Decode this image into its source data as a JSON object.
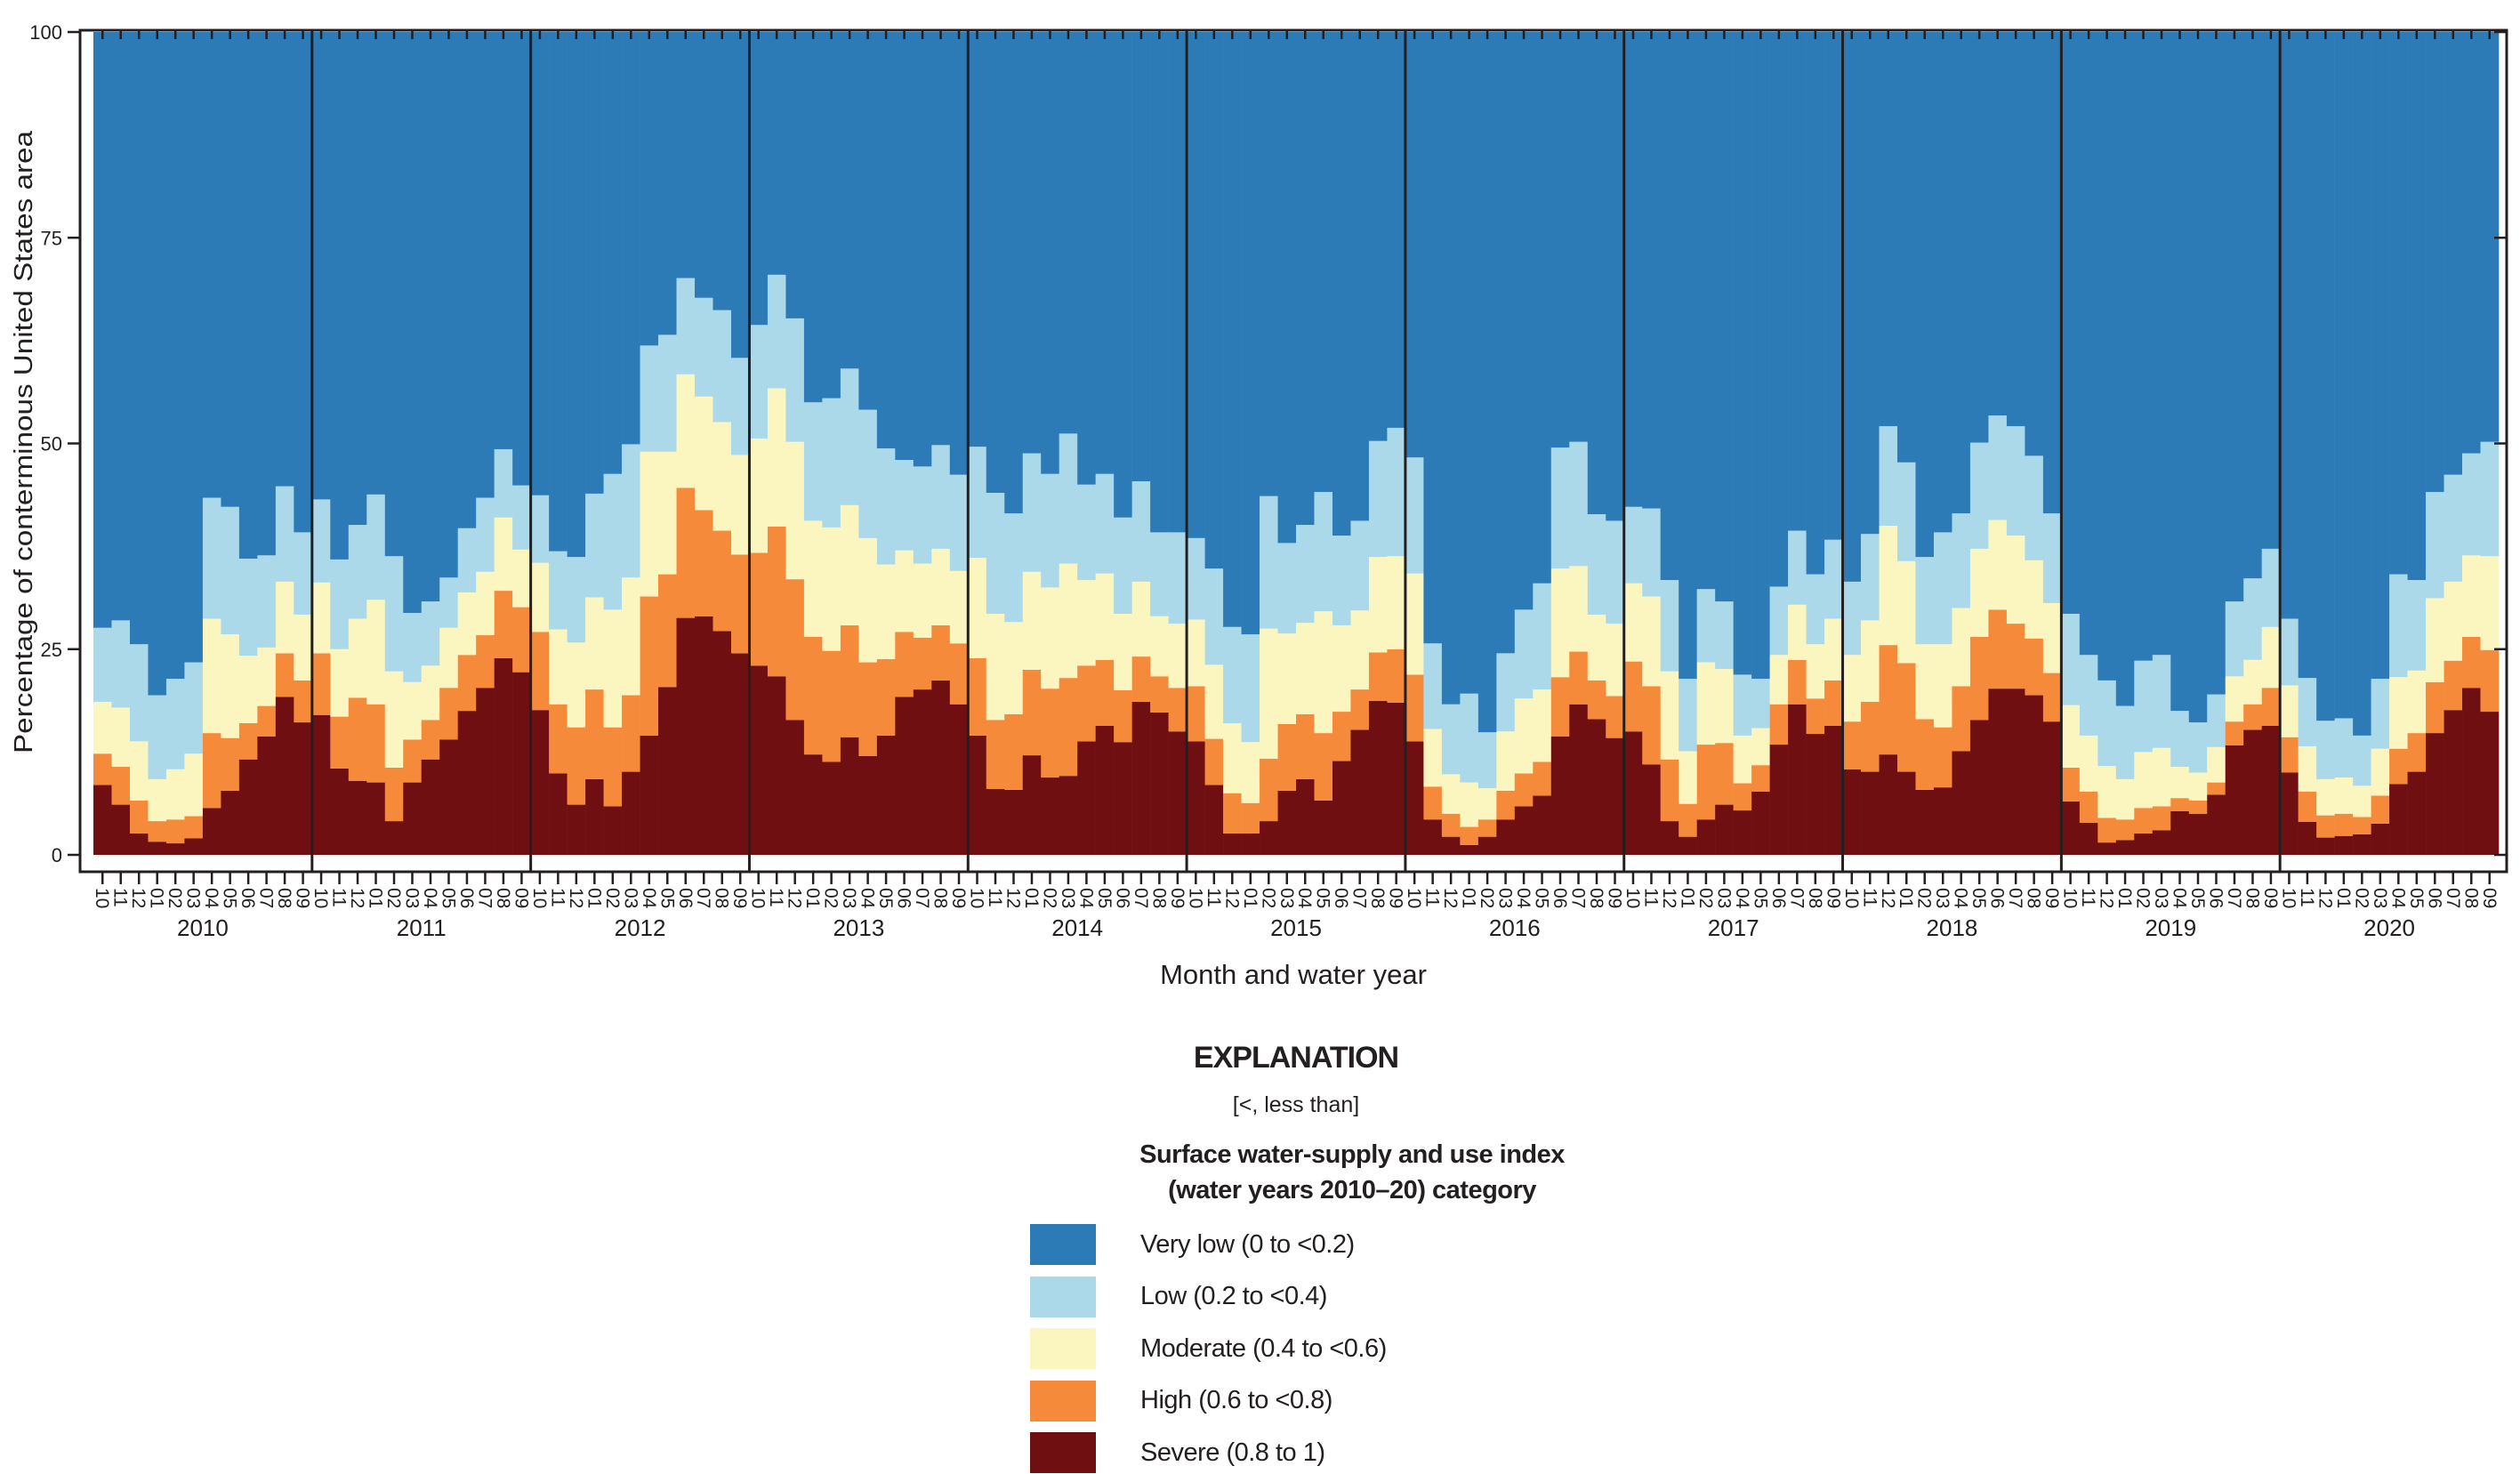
{
  "chart_data": {
    "type": "bar",
    "stacked": true,
    "ylabel": "Percentage of conterminous United States area",
    "xlabel": "Month and water year",
    "ylim": [
      0,
      100
    ],
    "yticks": [
      "0",
      "25",
      "50",
      "75",
      "100"
    ],
    "grid": false,
    "months": [
      "10",
      "11",
      "12",
      "01",
      "02",
      "03",
      "04",
      "05",
      "06",
      "07",
      "08",
      "09"
    ],
    "value_order": [
      "severe",
      "high",
      "moderate",
      "low",
      "very_low"
    ],
    "categories": [
      {
        "key": "very_low",
        "name": "Very low (0 to <0.2)",
        "color": "#2c7bb6"
      },
      {
        "key": "low",
        "name": "Low (0.2 to <0.4)",
        "color": "#abd9e9"
      },
      {
        "key": "moderate",
        "name": "Moderate (0.4 to <0.6)",
        "color": "#fbf6c0"
      },
      {
        "key": "high",
        "name": "High (0.6 to <0.8)",
        "color": "#f58a3a"
      },
      {
        "key": "severe",
        "name": "Severe (0.8 to 1)",
        "color": "#700f11"
      }
    ],
    "years": [
      {
        "year": "2010",
        "values": [
          [
            8.5,
            3.8,
            6.3,
            9.0,
            72.4
          ],
          [
            6.1,
            4.6,
            7.2,
            10.6,
            71.5
          ],
          [
            2.6,
            4.0,
            7.2,
            11.8,
            74.4
          ],
          [
            1.6,
            2.5,
            5.1,
            10.2,
            80.6
          ],
          [
            1.4,
            2.9,
            6.1,
            11.0,
            78.6
          ],
          [
            2.0,
            2.7,
            7.6,
            11.1,
            76.6
          ],
          [
            5.7,
            9.1,
            13.9,
            14.7,
            56.6
          ],
          [
            7.8,
            6.4,
            12.6,
            15.5,
            57.7
          ],
          [
            11.6,
            4.4,
            8.2,
            11.8,
            64.0
          ],
          [
            14.4,
            3.7,
            7.1,
            11.2,
            63.6
          ],
          [
            19.2,
            5.3,
            8.7,
            11.6,
            55.2
          ],
          [
            16.1,
            5.1,
            8.0,
            10.0,
            60.8
          ]
        ]
      },
      {
        "year": "2011",
        "values": [
          [
            17.0,
            7.5,
            8.6,
            10.1,
            56.8
          ],
          [
            10.5,
            6.3,
            8.2,
            10.9,
            64.1
          ],
          [
            9.0,
            10.1,
            9.6,
            11.4,
            59.9
          ],
          [
            8.8,
            9.5,
            12.7,
            12.8,
            56.2
          ],
          [
            4.1,
            6.5,
            11.7,
            14.0,
            63.7
          ],
          [
            8.8,
            5.2,
            7.0,
            8.4,
            70.6
          ],
          [
            11.6,
            4.8,
            6.6,
            7.8,
            69.2
          ],
          [
            14.0,
            6.3,
            7.3,
            6.1,
            66.3
          ],
          [
            17.5,
            6.8,
            7.6,
            7.8,
            60.3
          ],
          [
            20.3,
            6.4,
            7.7,
            9.0,
            56.6
          ],
          [
            23.9,
            8.2,
            8.9,
            8.3,
            50.7
          ],
          [
            22.2,
            7.9,
            7.0,
            7.8,
            55.1
          ]
        ]
      },
      {
        "year": "2012",
        "values": [
          [
            17.6,
            9.5,
            8.4,
            8.2,
            56.3
          ],
          [
            9.9,
            8.4,
            9.1,
            9.5,
            63.1
          ],
          [
            6.1,
            9.4,
            10.3,
            10.4,
            63.8
          ],
          [
            9.2,
            10.9,
            11.2,
            12.6,
            56.1
          ],
          [
            5.9,
            9.6,
            14.3,
            16.5,
            53.7
          ],
          [
            10.1,
            9.3,
            14.3,
            16.2,
            50.1
          ],
          [
            14.5,
            16.9,
            17.6,
            12.9,
            38.1
          ],
          [
            20.4,
            13.7,
            14.9,
            14.2,
            36.8
          ],
          [
            28.8,
            15.8,
            13.8,
            11.7,
            29.9
          ],
          [
            29.0,
            12.9,
            13.8,
            12.0,
            32.3
          ],
          [
            27.2,
            12.2,
            13.2,
            13.6,
            33.8
          ],
          [
            24.5,
            12.0,
            12.1,
            11.8,
            39.6
          ]
        ]
      },
      {
        "year": "2013",
        "values": [
          [
            23.0,
            13.7,
            13.9,
            13.8,
            35.6
          ],
          [
            21.7,
            18.2,
            16.8,
            13.8,
            29.5
          ],
          [
            16.4,
            17.1,
            16.7,
            15.0,
            34.8
          ],
          [
            12.2,
            14.3,
            14.1,
            14.4,
            45.0
          ],
          [
            11.3,
            13.5,
            15.0,
            15.7,
            44.5
          ],
          [
            14.3,
            13.6,
            14.6,
            16.6,
            40.9
          ],
          [
            12.0,
            11.4,
            15.1,
            15.6,
            45.9
          ],
          [
            14.5,
            9.3,
            11.5,
            14.1,
            50.6
          ],
          [
            19.2,
            7.9,
            9.9,
            11.0,
            52.0
          ],
          [
            20.1,
            6.3,
            9.0,
            11.8,
            52.8
          ],
          [
            21.2,
            6.7,
            9.3,
            12.6,
            50.2
          ],
          [
            18.3,
            7.4,
            8.8,
            11.7,
            53.8
          ]
        ]
      },
      {
        "year": "2014",
        "values": [
          [
            14.5,
            9.4,
            12.2,
            13.5,
            50.4
          ],
          [
            8.0,
            8.4,
            12.9,
            14.7,
            56.0
          ],
          [
            7.9,
            9.2,
            11.2,
            13.2,
            58.5
          ],
          [
            12.1,
            10.4,
            11.9,
            14.4,
            51.2
          ],
          [
            9.4,
            10.8,
            12.3,
            13.8,
            53.7
          ],
          [
            9.6,
            11.9,
            13.9,
            15.8,
            48.8
          ],
          [
            13.8,
            9.2,
            10.4,
            11.6,
            55.0
          ],
          [
            15.7,
            8.0,
            10.5,
            12.1,
            53.7
          ],
          [
            13.7,
            6.3,
            9.3,
            11.7,
            59.0
          ],
          [
            18.6,
            5.5,
            9.1,
            12.2,
            54.6
          ],
          [
            17.3,
            4.4,
            7.3,
            10.2,
            60.8
          ],
          [
            15.0,
            5.3,
            7.8,
            11.1,
            60.8
          ]
        ]
      },
      {
        "year": "2015",
        "values": [
          [
            13.8,
            6.7,
            8.1,
            9.9,
            61.5
          ],
          [
            8.5,
            5.6,
            9.0,
            11.7,
            65.2
          ],
          [
            2.6,
            4.9,
            8.5,
            11.7,
            72.3
          ],
          [
            2.6,
            3.7,
            7.4,
            13.1,
            73.2
          ],
          [
            4.1,
            7.6,
            15.8,
            16.1,
            56.4
          ],
          [
            7.8,
            8.1,
            11.0,
            11.0,
            62.1
          ],
          [
            9.2,
            7.9,
            11.1,
            11.9,
            59.9
          ],
          [
            6.6,
            8.2,
            14.8,
            14.5,
            55.9
          ],
          [
            11.4,
            6.0,
            10.5,
            10.9,
            61.2
          ],
          [
            15.2,
            4.9,
            9.6,
            10.9,
            59.4
          ],
          [
            18.7,
            5.9,
            11.6,
            14.1,
            49.7
          ],
          [
            18.5,
            6.5,
            11.3,
            15.6,
            48.1
          ]
        ]
      },
      {
        "year": "2016",
        "values": [
          [
            13.8,
            8.1,
            12.3,
            14.1,
            51.7
          ],
          [
            4.3,
            4.0,
            7.0,
            10.4,
            74.3
          ],
          [
            2.2,
            2.8,
            4.8,
            8.5,
            81.7
          ],
          [
            1.2,
            2.2,
            5.4,
            10.8,
            80.4
          ],
          [
            2.2,
            2.1,
            3.8,
            6.8,
            85.1
          ],
          [
            4.3,
            3.5,
            7.2,
            9.5,
            75.5
          ],
          [
            5.9,
            4.0,
            9.1,
            10.8,
            70.2
          ],
          [
            7.2,
            4.1,
            8.8,
            12.9,
            67.0
          ],
          [
            14.4,
            7.2,
            13.2,
            14.7,
            50.5
          ],
          [
            18.3,
            6.4,
            10.4,
            15.1,
            49.8
          ],
          [
            16.5,
            4.7,
            8.0,
            12.2,
            58.6
          ],
          [
            14.2,
            5.1,
            8.8,
            12.5,
            59.4
          ]
        ]
      },
      {
        "year": "2017",
        "values": [
          [
            15.0,
            8.5,
            9.5,
            9.3,
            57.7
          ],
          [
            11.0,
            9.5,
            10.9,
            10.7,
            57.9
          ],
          [
            4.1,
            7.5,
            10.7,
            11.1,
            66.6
          ],
          [
            2.2,
            4.0,
            6.4,
            8.8,
            78.6
          ],
          [
            4.3,
            9.1,
            10.0,
            8.9,
            67.7
          ],
          [
            6.1,
            7.5,
            9.0,
            8.2,
            69.2
          ],
          [
            5.4,
            3.3,
            5.8,
            7.4,
            78.1
          ],
          [
            7.7,
            3.2,
            4.5,
            6.0,
            78.6
          ],
          [
            13.4,
            4.9,
            6.0,
            8.3,
            67.4
          ],
          [
            18.3,
            5.4,
            6.7,
            9.0,
            60.6
          ],
          [
            14.7,
            4.3,
            6.6,
            8.5,
            65.9
          ],
          [
            15.7,
            5.5,
            7.5,
            9.6,
            61.7
          ]
        ]
      },
      {
        "year": "2018",
        "values": [
          [
            10.4,
            5.8,
            8.1,
            8.9,
            66.8
          ],
          [
            10.1,
            8.5,
            9.9,
            10.5,
            61.0
          ],
          [
            12.2,
            13.3,
            14.5,
            12.1,
            47.9
          ],
          [
            10.1,
            13.2,
            12.4,
            12.0,
            52.3
          ],
          [
            7.9,
            8.6,
            9.1,
            10.6,
            63.8
          ],
          [
            8.2,
            7.3,
            10.1,
            13.6,
            60.8
          ],
          [
            12.6,
            7.9,
            9.5,
            11.5,
            58.5
          ],
          [
            16.4,
            10.1,
            10.7,
            12.9,
            49.9
          ],
          [
            20.2,
            9.6,
            10.9,
            12.7,
            46.6
          ],
          [
            20.2,
            7.9,
            10.7,
            13.3,
            47.9
          ],
          [
            19.4,
            6.9,
            9.5,
            12.7,
            51.5
          ],
          [
            16.2,
            5.9,
            8.5,
            10.9,
            58.5
          ]
        ]
      },
      {
        "year": "2019",
        "values": [
          [
            6.5,
            4.1,
            7.6,
            11.1,
            70.7
          ],
          [
            3.9,
            3.8,
            6.8,
            9.8,
            75.7
          ],
          [
            1.5,
            3.0,
            6.3,
            10.4,
            78.8
          ],
          [
            1.8,
            2.5,
            4.9,
            8.9,
            81.9
          ],
          [
            2.6,
            3.1,
            6.8,
            11.1,
            76.4
          ],
          [
            3.0,
            2.9,
            7.1,
            11.3,
            75.7
          ],
          [
            5.3,
            1.6,
            3.8,
            6.8,
            82.5
          ],
          [
            5.0,
            1.6,
            3.4,
            6.1,
            83.9
          ],
          [
            7.3,
            1.5,
            4.3,
            6.4,
            80.5
          ],
          [
            13.3,
            2.9,
            5.5,
            9.1,
            69.2
          ],
          [
            15.2,
            3.1,
            5.4,
            9.9,
            66.4
          ],
          [
            15.7,
            4.6,
            7.4,
            9.5,
            62.8
          ]
        ]
      },
      {
        "year": "2020",
        "values": [
          [
            10.0,
            4.3,
            6.3,
            8.1,
            71.3
          ],
          [
            4.0,
            3.7,
            5.5,
            8.3,
            78.5
          ],
          [
            2.1,
            2.7,
            4.4,
            7.1,
            83.7
          ],
          [
            2.3,
            2.7,
            4.4,
            7.2,
            83.4
          ],
          [
            2.5,
            2.1,
            3.8,
            6.1,
            85.5
          ],
          [
            3.8,
            3.4,
            5.7,
            8.5,
            78.6
          ],
          [
            8.6,
            4.3,
            8.7,
            12.5,
            65.9
          ],
          [
            10.1,
            4.7,
            7.6,
            11.0,
            66.6
          ],
          [
            14.8,
            6.2,
            10.2,
            12.9,
            55.9
          ],
          [
            17.6,
            6.0,
            9.6,
            13.0,
            53.8
          ],
          [
            20.3,
            6.2,
            9.9,
            12.4,
            51.2
          ],
          [
            17.4,
            7.5,
            11.4,
            13.9,
            49.8
          ]
        ]
      }
    ]
  },
  "legend": {
    "heading": "EXPLANATION",
    "note": "[<, less than]",
    "title_line1": "Surface water-supply and use index",
    "title_line2": "(water years 2010–20) category"
  }
}
